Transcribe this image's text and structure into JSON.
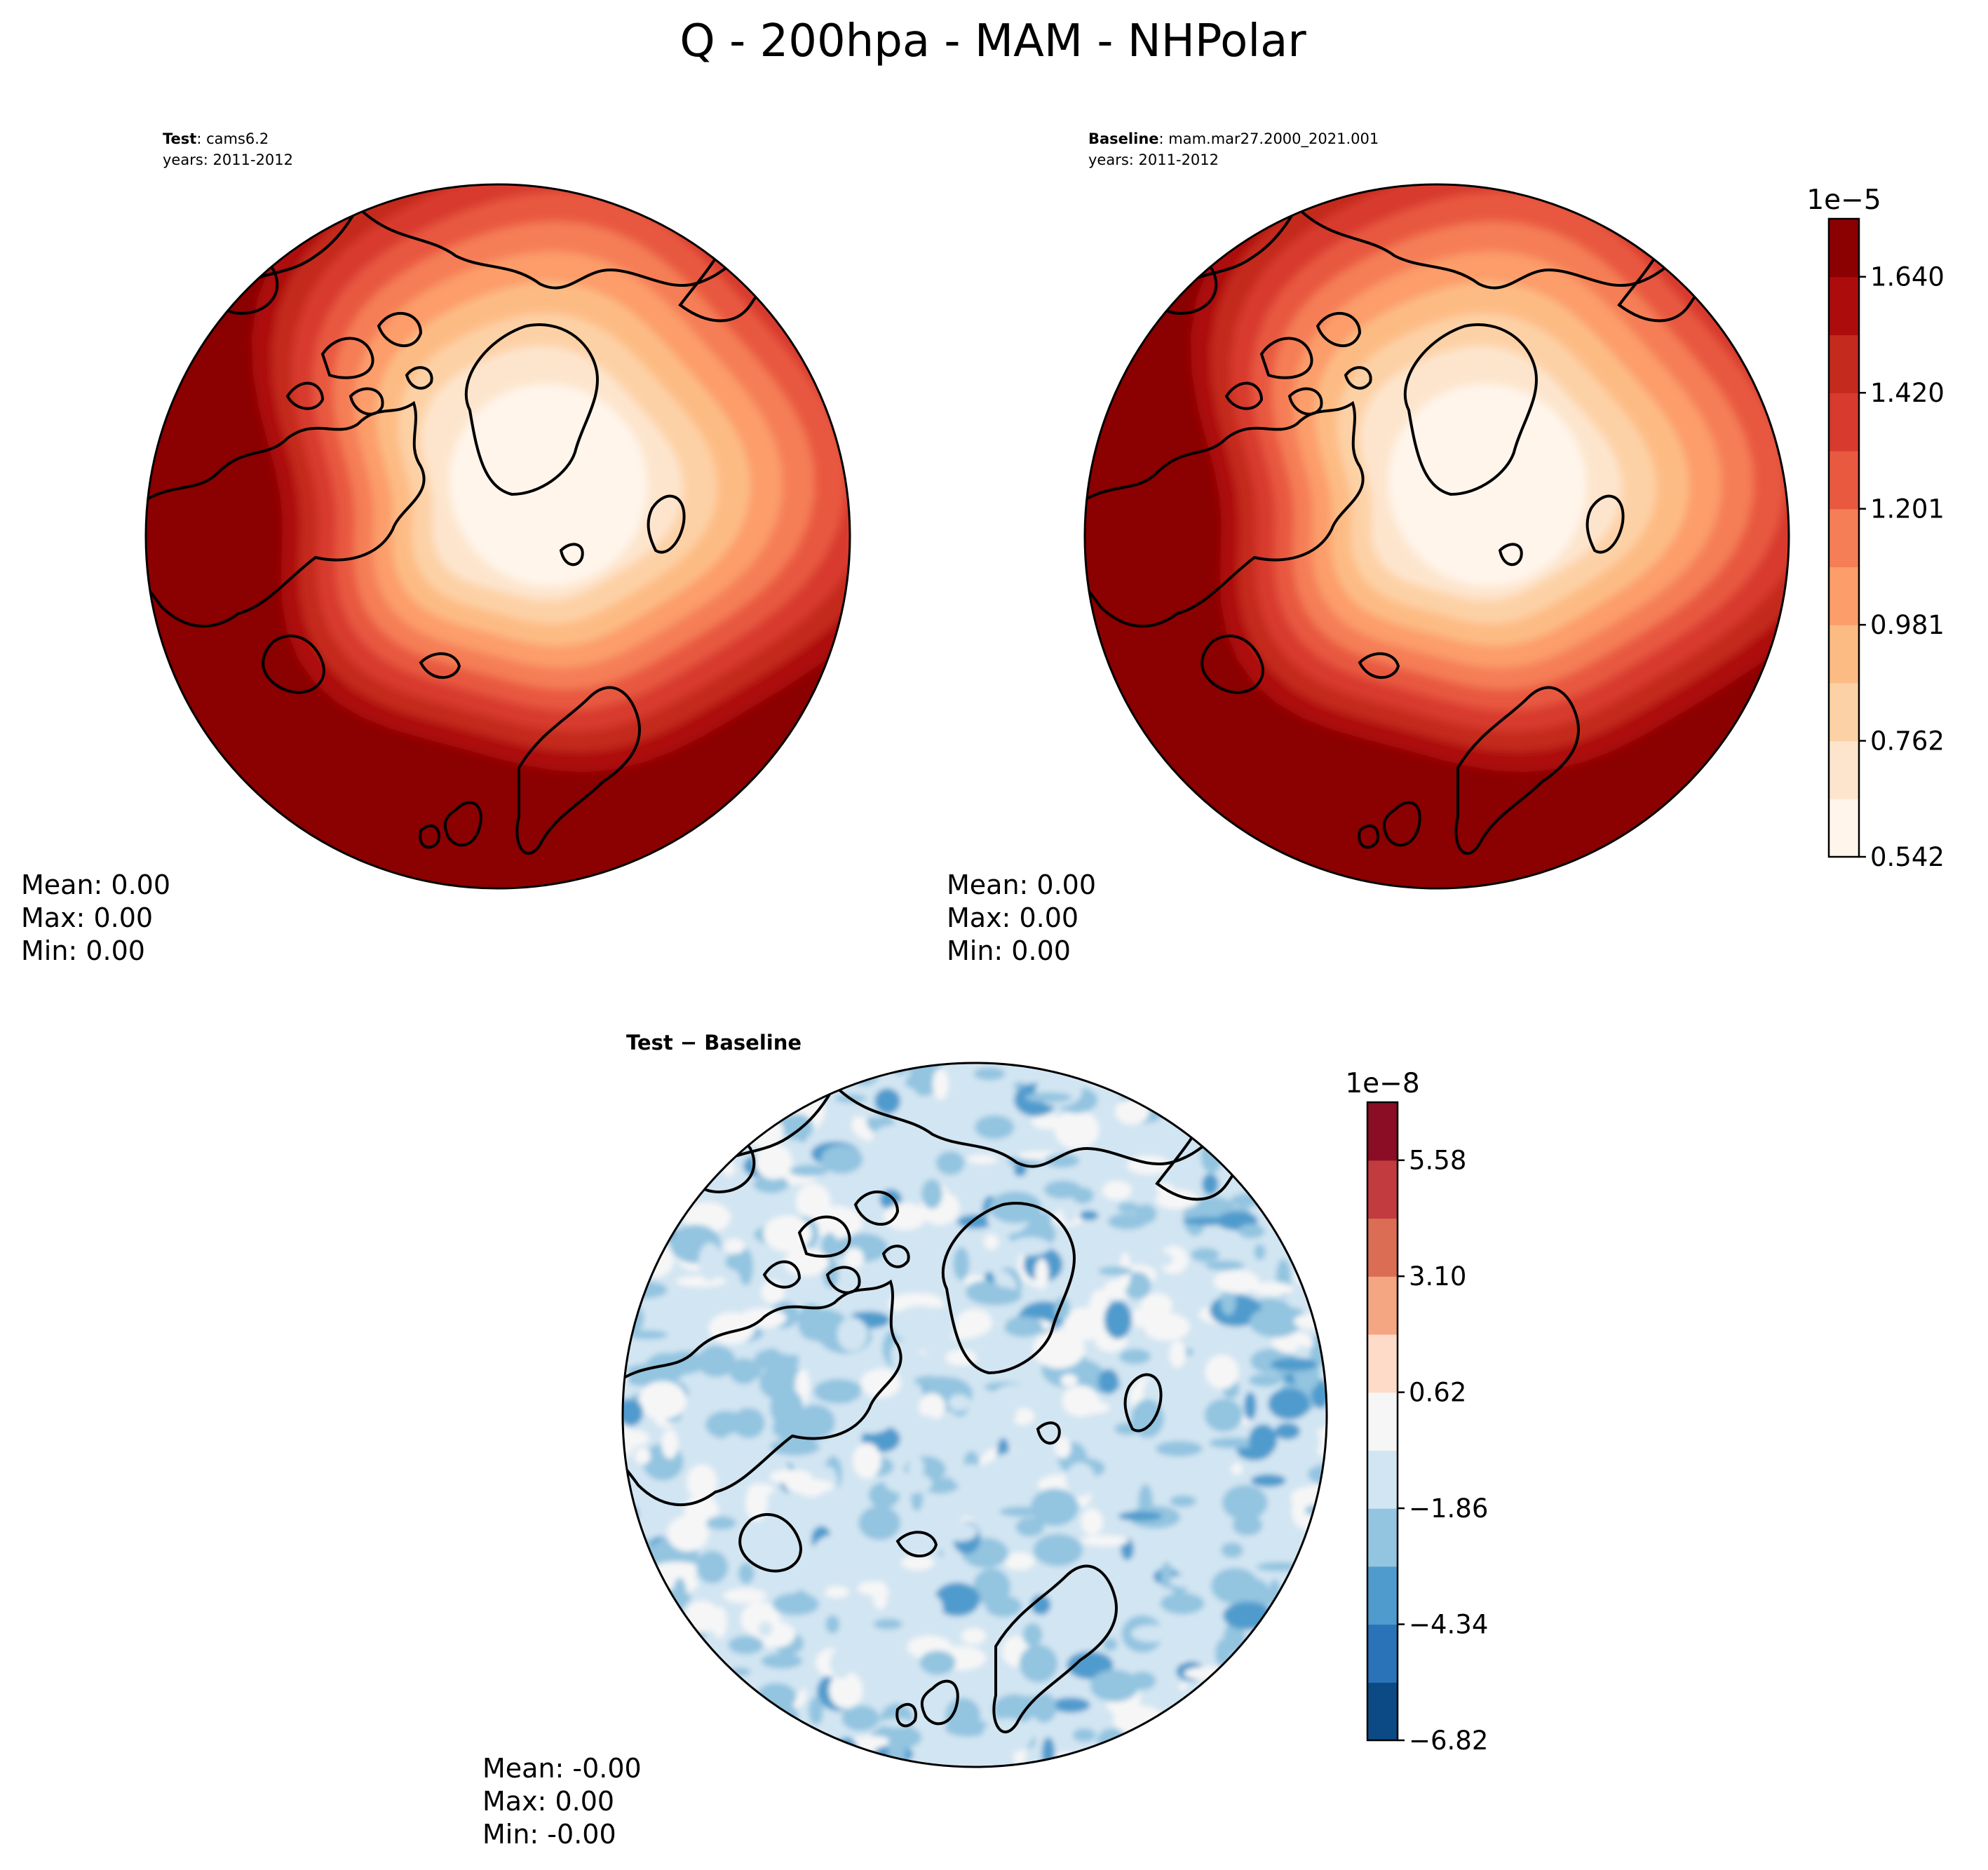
{
  "figure": {
    "title": "Q - 200hpa - MAM - NHPolar"
  },
  "panels": [
    {
      "key": "test",
      "label_bold": "Test",
      "label_rest": ": cams6.2",
      "years": "years: 2011-2012",
      "stats": {
        "mean": "Mean:  0.00",
        "max": "Max:  0.00",
        "min": "Min:  0.00"
      }
    },
    {
      "key": "baseline",
      "label_bold": "Baseline",
      "label_rest": ": mam.mar27.2000_2021.001",
      "years": "years: 2011-2012",
      "stats": {
        "mean": "Mean:  0.00",
        "max": "Max:  0.00",
        "min": "Min:  0.00"
      }
    },
    {
      "key": "diff",
      "label_bold": "Test − Baseline",
      "label_rest": "",
      "years": "",
      "stats": {
        "mean": "Mean: -0.00",
        "max": "Max:  0.00",
        "min": "Min: -0.00"
      }
    }
  ],
  "colorbars": [
    {
      "key": "main",
      "offset_label": "1e−5",
      "tick_labels": [
        "0.542",
        "0.762",
        "0.981",
        "1.201",
        "1.420",
        "1.640"
      ],
      "tick_positions": [
        0,
        2,
        4,
        6,
        8,
        10
      ],
      "n_levels": 11,
      "colors": [
        "#fff5eb",
        "#fde5cd",
        "#fdd1a6",
        "#fdbb84",
        "#fc9d6a",
        "#f57e56",
        "#e8593f",
        "#d83a2e",
        "#c42a1e",
        "#ad0c0c",
        "#8b0000"
      ]
    },
    {
      "key": "diff",
      "offset_label": "1e−8",
      "tick_labels": [
        "−6.82",
        "−4.34",
        "−1.86",
        "0.62",
        "3.10",
        "5.58"
      ],
      "tick_positions": [
        0,
        2,
        4,
        6,
        8,
        10
      ],
      "n_levels": 11,
      "colors": [
        "#0c4a86",
        "#2a73b8",
        "#4f9bcd",
        "#93c4e0",
        "#d2e5f2",
        "#f6f6f6",
        "#fddbc8",
        "#f4a582",
        "#dc6d55",
        "#c23b3e",
        "#8b0d25"
      ]
    }
  ],
  "maps": {
    "main_palette": [
      "#fff5eb",
      "#fde5cd",
      "#fdd1a6",
      "#fdbb84",
      "#fc9d6a",
      "#f57e56",
      "#e8593f",
      "#d83a2e",
      "#c42a1e",
      "#ad0c0c",
      "#8b0000"
    ],
    "diff_palette": [
      "#1d5d9e",
      "#4f9bcd",
      "#93c4e0",
      "#d2e5f2",
      "#f6f6f6",
      "#f4a582"
    ],
    "coastline_color": "#000000",
    "border_color": "#000000"
  }
}
